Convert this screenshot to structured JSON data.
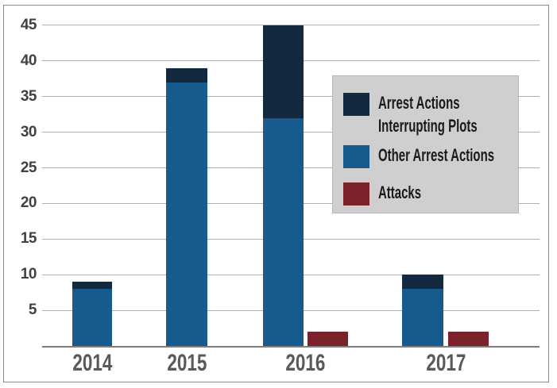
{
  "chart_data": {
    "type": "bar",
    "stacked": true,
    "title": "",
    "xlabel": "",
    "ylabel": "",
    "categories": [
      "2014",
      "2015",
      "2016",
      "2017"
    ],
    "series": [
      {
        "name": "Arrest Actions Interrupting Plots",
        "color": "#122940",
        "values": [
          1,
          2,
          13,
          2
        ],
        "stack": "arrest-actions"
      },
      {
        "name": "Other Arrest Actions",
        "color": "#165A8E",
        "values": [
          8,
          37,
          32,
          8
        ],
        "stack": "arrest-actions"
      },
      {
        "name": "Attacks",
        "color": "#7C222B",
        "values": [
          0,
          0,
          2,
          2
        ],
        "stack": null
      }
    ],
    "stacked_totals": [
      9,
      39,
      45,
      10
    ],
    "ylim": [
      0,
      45
    ],
    "y_ticks": [
      5,
      10,
      15,
      20,
      25,
      30,
      35,
      40,
      45
    ],
    "grid": true,
    "legend_position": "overlay-right",
    "legend_bg": "#CFCFCF"
  },
  "legend": {
    "entries": [
      {
        "lines": [
          "Arrest Actions",
          "Interrupting Plots"
        ]
      },
      {
        "lines": [
          "Other Arrest Actions"
        ]
      },
      {
        "lines": [
          "Attacks"
        ]
      }
    ]
  }
}
